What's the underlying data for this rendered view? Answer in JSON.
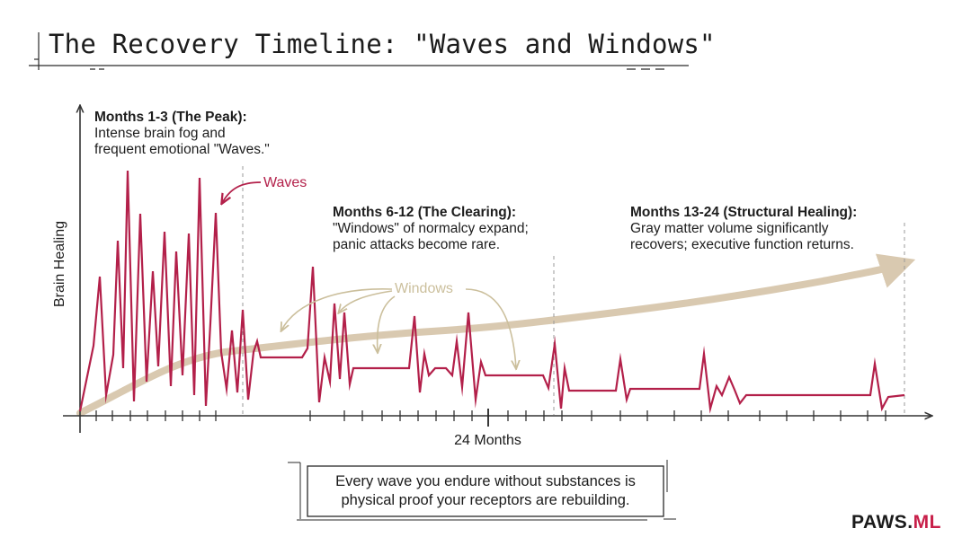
{
  "title": "The Recovery Timeline: \"Waves and Windows\"",
  "axes": {
    "ylabel": "Brain Healing",
    "xlabel": "24 Months"
  },
  "annotations": [
    {
      "heading": "Months 1-3 (The Peak):",
      "body": "Intense brain fog and\nfrequent emotional \"Waves.\""
    },
    {
      "heading": "Months 6-12 (The Clearing):",
      "body": "\"Windows\" of normalcy expand;\npanic attacks become rare."
    },
    {
      "heading": "Months 13-24 (Structural Healing):",
      "body": "Gray matter volume significantly\nrecovers; executive function returns."
    }
  ],
  "labels": {
    "waves": "Waves",
    "windows": "Windows"
  },
  "quote": "Every wave you endure without substances is\nphysical proof your receptors are rebuilding.",
  "brand": {
    "part1": "PAWS.",
    "part2": "ML"
  },
  "colors": {
    "waves": "#b3204a",
    "trend": "#d9c9b0",
    "windows_label": "#cbbf9c",
    "ink": "#1b1b1b",
    "brand_accent": "#c8204a"
  }
}
